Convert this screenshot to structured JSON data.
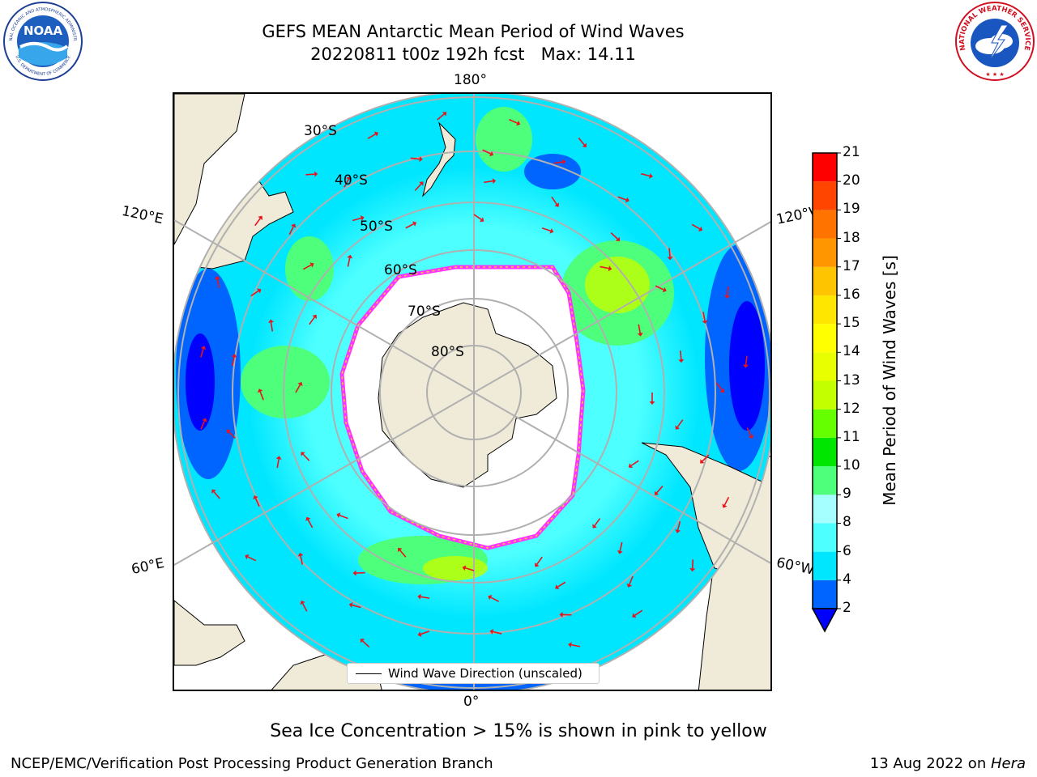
{
  "header": {
    "title_line1": "GEFS MEAN Antarctic Mean Period of Wind Waves",
    "title_line2_date": "20220811 t00z 192h fcst",
    "title_line2_max": "Max: 14.11"
  },
  "logos": {
    "noaa_text": "NOAA",
    "noaa_ring_top": "NATIONAL OCEANIC AND ATMOSPHERIC ADMINISTRATION",
    "noaa_ring_bottom": "U.S. DEPARTMENT OF COMMERCE",
    "nws_ring": "NATIONAL WEATHER SERVICE"
  },
  "map": {
    "projection": "south-polar-stereographic",
    "lon_labels": {
      "top": "180°",
      "bottom": "0°",
      "upper_left": "120°E",
      "upper_right": "120°W",
      "lower_left": "60°E",
      "lower_right": "60°W"
    },
    "lat_labels": [
      "30°S",
      "40°S",
      "50°S",
      "60°S",
      "70°S",
      "80°S"
    ],
    "legend_label": "Wind Wave Direction (unscaled)",
    "colors": {
      "land": "#efebd8",
      "ice_edge": "#ff33ff",
      "ice_edge_inner": "#ffcc33",
      "arrow": "#e8141b",
      "grid": "#b0b0b0"
    }
  },
  "colorbar": {
    "label": "Mean Period of Wind Waves [s]",
    "ticks": [
      "2",
      "4",
      "6",
      "8",
      "9",
      "10",
      "11",
      "12",
      "13",
      "14",
      "15",
      "16",
      "17",
      "18",
      "19",
      "20",
      "21"
    ],
    "colors": [
      "#0064ff",
      "#00e6ff",
      "#4dffff",
      "#a5ffff",
      "#4dff7a",
      "#00e600",
      "#66ff00",
      "#c4ff00",
      "#e8ff00",
      "#ffff00",
      "#ffe600",
      "#ffc400",
      "#ff9600",
      "#ff7300",
      "#ff4500",
      "#ff0000"
    ],
    "extend_color": "#0000ff"
  },
  "footer": {
    "note": "Sea Ice Concentration > 15% is shown in pink to yellow",
    "credit_left": "NCEP/EMC/Verification Post Processing Product Generation Branch",
    "credit_date": "13 Aug 2022 on ",
    "credit_host": "Hera"
  }
}
